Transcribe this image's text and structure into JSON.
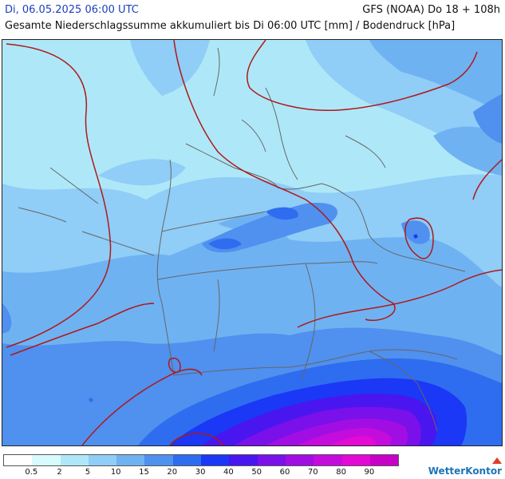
{
  "header": {
    "datetime": "Di, 06.05.2025 06:00 UTC",
    "model": "GFS (NOAA) Do 18 + 108h",
    "subtitle": "Gesamte Niederschlagssumme akkumuliert bis Di 06:00 UTC [mm] / Bodendruck [hPa]"
  },
  "legend": {
    "colors": [
      "#ffffff",
      "#d9fbff",
      "#aee8f8",
      "#90cdf7",
      "#6fb2f2",
      "#5090ee",
      "#2e6cf0",
      "#1a38f5",
      "#4a16f0",
      "#7a10ea",
      "#a10ee4",
      "#c40cdc",
      "#e20ad4",
      "#c800c8"
    ],
    "labels": [
      "0.5",
      "2",
      "5",
      "10",
      "15",
      "20",
      "30",
      "40",
      "50",
      "60",
      "70",
      "80",
      "90"
    ]
  },
  "brand": {
    "name": "WetterKontor"
  },
  "map": {
    "isobar_color": "#b01818",
    "border_color": "#666666"
  }
}
